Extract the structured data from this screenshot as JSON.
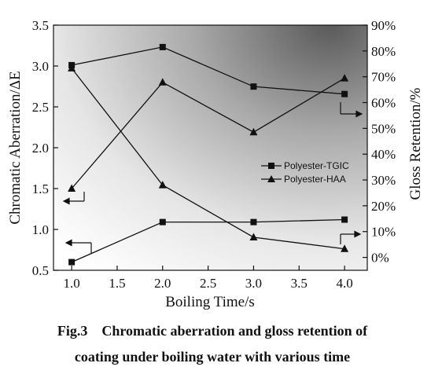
{
  "chart_data": {
    "type": "line",
    "xlabel": "Boiling Time/s",
    "ylabel_left": "Chromatic Aberration/ΔE",
    "ylabel_right": "Gloss Retention/%",
    "x_ticks": [
      "1.0",
      "1.5",
      "2.0",
      "2.5",
      "3.0",
      "3.5",
      "4.0"
    ],
    "y_left_ticks": [
      "0.5",
      "1.0",
      "1.5",
      "2.0",
      "2.5",
      "3.0",
      "3.5"
    ],
    "y_right_ticks": [
      "0%",
      "10%",
      "20%",
      "30%",
      "40%",
      "50%",
      "60%",
      "70%",
      "80%",
      "90%"
    ],
    "xlim": [
      0.8,
      4.25
    ],
    "ylim_left": [
      0.5,
      3.5
    ],
    "ylim_right": [
      -5,
      90
    ],
    "series": [
      {
        "name": "Polyester-TGIC",
        "marker": "square",
        "axis": "left",
        "x": [
          1.0,
          2.0,
          3.0,
          4.0
        ],
        "y": [
          0.6,
          1.09,
          1.09,
          1.12
        ]
      },
      {
        "name": "Polyester-HAA",
        "marker": "triangle",
        "axis": "left",
        "x": [
          1.0,
          2.0,
          3.0,
          4.0
        ],
        "y": [
          1.5,
          2.8,
          2.19,
          2.85
        ]
      },
      {
        "name": "Polyester-TGIC",
        "marker": "square",
        "axis": "right",
        "x": [
          1.0,
          2.0,
          3.0,
          4.0
        ],
        "y": [
          74.5,
          81.5,
          66.2,
          63.3
        ]
      },
      {
        "name": "Polyester-HAA",
        "marker": "triangle",
        "axis": "right",
        "x": [
          1.0,
          2.0,
          3.0,
          4.0
        ],
        "y": [
          73.3,
          28.0,
          7.8,
          3.3
        ]
      }
    ],
    "legend": {
      "position": "center-right",
      "entries": [
        {
          "label": "Polyester-TGIC",
          "marker": "square"
        },
        {
          "label": "Polyester-HAA",
          "marker": "triangle"
        }
      ]
    },
    "grid": false
  },
  "caption": {
    "line1": "Fig.3    Chromatic aberration and gloss retention of",
    "line2": "coating under boiling water with various time"
  }
}
